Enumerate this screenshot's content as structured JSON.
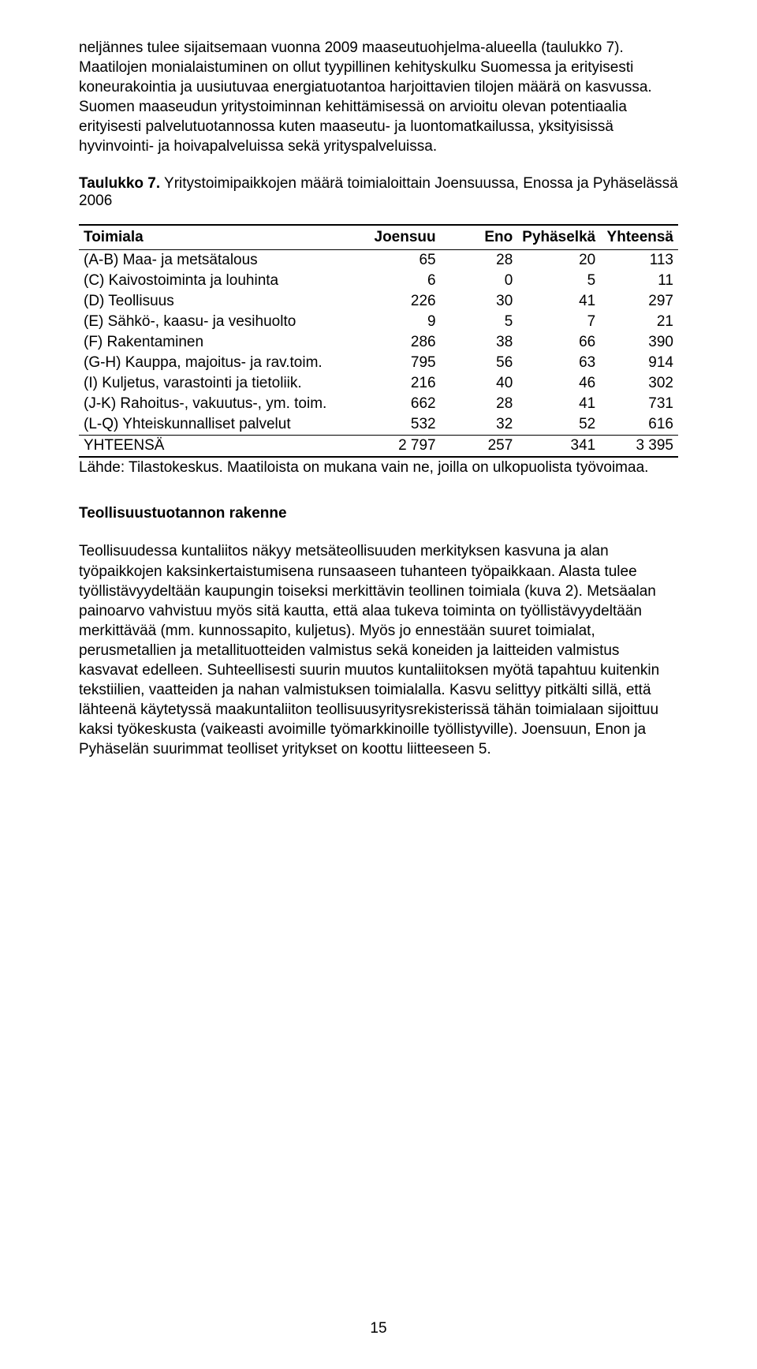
{
  "para1": "neljännes tulee sijaitsemaan vuonna 2009 maaseutuohjelma-alueella (taulukko 7). Maatilojen monialaistuminen on ollut tyypillinen kehityskulku Suomessa ja erityisesti koneurakointia ja uusiutuvaa energiatuotantoa harjoittavien tilojen määrä on kasvussa. Suomen maaseudun yritystoiminnan kehittämisessä on arvioitu olevan potentiaalia erityisesti palvelutuotannossa kuten maaseutu- ja luontomatkailussa, yksityisissä hyvinvointi- ja hoivapalveluissa sekä yrityspalveluissa.",
  "table_title_prefix": "Taulukko 7.",
  "table_title_rest": " Yritystoimipaikkojen määrä toimialoittain Joensuussa, Enossa ja Pyhäselässä 2006",
  "table": {
    "columns": [
      "Toimiala",
      "Joensuu",
      "Eno",
      "Pyhäselkä",
      "Yhteensä"
    ],
    "rows": [
      [
        "(A-B) Maa- ja metsätalous",
        "65",
        "28",
        "20",
        "113"
      ],
      [
        "(C) Kaivostoiminta ja louhinta",
        "6",
        "0",
        "5",
        "11"
      ],
      [
        "(D) Teollisuus",
        "226",
        "30",
        "41",
        "297"
      ],
      [
        "(E) Sähkö-, kaasu- ja vesihuolto",
        "9",
        "5",
        "7",
        "21"
      ],
      [
        "(F) Rakentaminen",
        "286",
        "38",
        "66",
        "390"
      ],
      [
        "(G-H) Kauppa, majoitus- ja rav.toim.",
        "795",
        "56",
        "63",
        "914"
      ],
      [
        "(I) Kuljetus, varastointi ja tietoliik.",
        "216",
        "40",
        "46",
        "302"
      ],
      [
        "(J-K) Rahoitus-, vakuutus-, ym. toim.",
        "662",
        "28",
        "41",
        "731"
      ],
      [
        "(L-Q) Yhteiskunnalliset palvelut",
        "532",
        "32",
        "52",
        "616"
      ]
    ],
    "total_row": [
      "YHTEENSÄ",
      "2 797",
      "257",
      "341",
      "3 395"
    ]
  },
  "source_note": "Lähde: Tilastokeskus. Maatiloista on mukana vain ne, joilla on ulkopuolista työvoimaa.",
  "section_heading": "Teollisuustuotannon rakenne",
  "para2": "Teollisuudessa kuntaliitos näkyy metsäteollisuuden merkityksen kasvuna ja alan työpaikkojen kaksinkertaistumisena runsaaseen tuhanteen työpaikkaan. Alasta tulee työllistävyydeltään kaupungin toiseksi merkittävin teollinen toimiala (kuva 2). Metsäalan painoarvo vahvistuu myös sitä kautta, että alaa tukeva toiminta on työllistävyydeltään merkittävää (mm. kunnossapito, kuljetus). Myös jo ennestään suuret toimialat, perusmetallien ja metallituotteiden valmistus sekä koneiden ja laitteiden valmistus kasvavat edelleen. Suhteellisesti suurin muutos kuntaliitoksen myötä tapahtuu kuitenkin tekstiilien, vaatteiden ja nahan valmistuksen toimialalla. Kasvu selittyy pitkälti sillä, että lähteenä käytetyssä maakuntaliiton teollisuusyritysrekisterissä tähän toimialaan sijoittuu kaksi työkeskusta (vaikeasti avoimille työmarkkinoille työllistyville). Joensuun, Enon ja Pyhäselän suurimmat teolliset yritykset on koottu liitteeseen 5.",
  "page_number": "15"
}
